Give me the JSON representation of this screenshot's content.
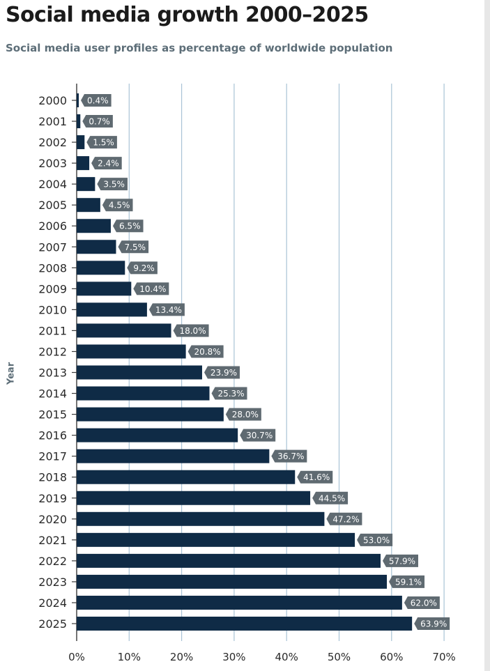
{
  "chart_data": {
    "type": "bar",
    "orientation": "horizontal",
    "title": "Social media growth 2000–2025",
    "subtitle": "Social media user profiles as percentage of worldwide population",
    "ylabel": "Year",
    "xlabel": "",
    "categories": [
      "2000",
      "2001",
      "2002",
      "2003",
      "2004",
      "2005",
      "2006",
      "2007",
      "2008",
      "2009",
      "2010",
      "2011",
      "2012",
      "2013",
      "2014",
      "2015",
      "2016",
      "2017",
      "2018",
      "2019",
      "2020",
      "2021",
      "2022",
      "2023",
      "2024",
      "2025"
    ],
    "values": [
      0.4,
      0.7,
      1.5,
      2.4,
      3.5,
      4.5,
      6.5,
      7.5,
      9.2,
      10.4,
      13.4,
      18.0,
      20.8,
      23.9,
      25.3,
      28.0,
      30.7,
      36.7,
      41.6,
      44.5,
      47.2,
      53.0,
      57.9,
      59.1,
      62.0,
      63.9
    ],
    "value_labels": [
      "0.4%",
      "0.7%",
      "1.5%",
      "2.4%",
      "3.5%",
      "4.5%",
      "6.5%",
      "7.5%",
      "9.2%",
      "10.4%",
      "13.4%",
      "18.0%",
      "20.8%",
      "23.9%",
      "25.3%",
      "28.0%",
      "30.7%",
      "36.7%",
      "41.6%",
      "44.5%",
      "47.2%",
      "53.0%",
      "57.9%",
      "59.1%",
      "62.0%",
      "63.9%"
    ],
    "xticks": [
      0,
      10,
      20,
      30,
      40,
      50,
      60,
      70
    ],
    "xtick_labels": [
      "0%",
      "10%",
      "20%",
      "30%",
      "40%",
      "50%",
      "60%",
      "70%"
    ],
    "xlim": [
      0,
      70
    ],
    "grid": "vertical",
    "colors": {
      "bar": "#0f2b46",
      "label_bg": "#5f6a71",
      "grid": "#a9c3d6",
      "axis": "#3a3a3a"
    }
  }
}
